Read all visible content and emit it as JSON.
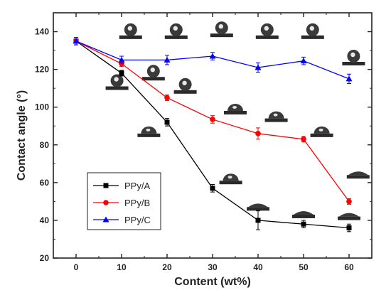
{
  "chart_data": {
    "type": "line",
    "xlabel": "Content (wt%)",
    "ylabel": "Contact angle (°)",
    "xlim": [
      -5,
      65
    ],
    "ylim": [
      20,
      150
    ],
    "x_ticks": [
      0,
      10,
      20,
      30,
      40,
      50,
      60
    ],
    "y_ticks": [
      20,
      40,
      60,
      80,
      100,
      120,
      140
    ],
    "grid": false,
    "legend_position": "bottom-left",
    "x": [
      0,
      10,
      20,
      30,
      40,
      50,
      60
    ],
    "series": [
      {
        "name": "PPy/A",
        "color": "#000000",
        "marker": "square",
        "values": [
          135,
          118,
          92,
          57,
          40,
          38,
          36
        ],
        "errors": [
          2,
          1.5,
          2,
          2,
          5,
          2,
          2
        ]
      },
      {
        "name": "PPy/B",
        "color": "#ff0000",
        "marker": "circle",
        "values": [
          135,
          123,
          105,
          93.5,
          86,
          83,
          50
        ],
        "errors": [
          2,
          1.5,
          1.5,
          2,
          3,
          1.5,
          1.5
        ]
      },
      {
        "name": "PPy/C",
        "color": "#0000ff",
        "marker": "triangle",
        "values": [
          135,
          125,
          125,
          127,
          121,
          124.5,
          115
        ],
        "errors": [
          2,
          2,
          2.5,
          2,
          2.5,
          2,
          2.5
        ]
      }
    ],
    "droplet_insets": {
      "description_values": "inset droplet images above data points",
      "items": [
        {
          "x": 12,
          "y": 138,
          "shape": "round"
        },
        {
          "x": 22,
          "y": 138,
          "shape": "round"
        },
        {
          "x": 32,
          "y": 139,
          "shape": "round"
        },
        {
          "x": 42,
          "y": 138,
          "shape": "round"
        },
        {
          "x": 52,
          "y": 138,
          "shape": "round"
        },
        {
          "x": 61,
          "y": 124,
          "shape": "round"
        },
        {
          "x": 9,
          "y": 111,
          "shape": "round"
        },
        {
          "x": 17,
          "y": 116,
          "shape": "round"
        },
        {
          "x": 24,
          "y": 109,
          "shape": "round"
        },
        {
          "x": 35,
          "y": 98,
          "shape": "medium"
        },
        {
          "x": 44,
          "y": 94,
          "shape": "medium"
        },
        {
          "x": 54,
          "y": 86,
          "shape": "medium"
        },
        {
          "x": 16,
          "y": 86,
          "shape": "medium"
        },
        {
          "x": 34,
          "y": 61,
          "shape": "medium"
        },
        {
          "x": 40,
          "y": 47,
          "shape": "flat"
        },
        {
          "x": 50,
          "y": 43,
          "shape": "flat"
        },
        {
          "x": 60,
          "y": 42,
          "shape": "flat"
        },
        {
          "x": 62,
          "y": 64,
          "shape": "flat"
        }
      ]
    }
  }
}
